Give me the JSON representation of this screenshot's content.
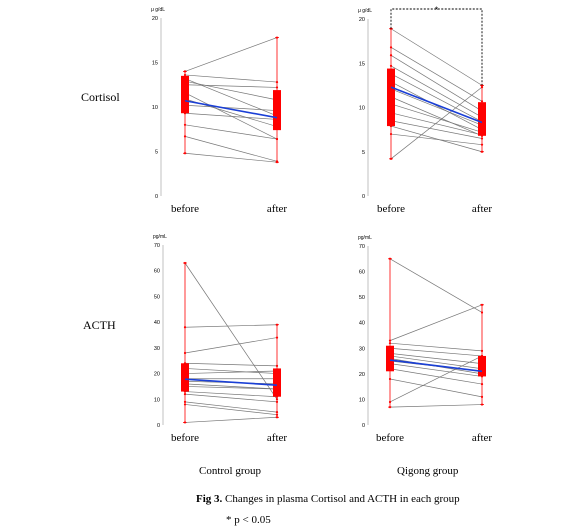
{
  "row_labels": [
    "Cortisol",
    "ACTH"
  ],
  "group_labels": [
    "Control group",
    "Qigong group"
  ],
  "caption": {
    "label": "Fig 3.",
    "text": "Changes in plasma Cortisol and ACTH in each group"
  },
  "note": "* p < 0.05",
  "colors": {
    "range": "#ff0000",
    "box": "#ff0000",
    "subject": "#777777",
    "mean": "#1a3fd6"
  },
  "chart_data": [
    {
      "type": "line",
      "panel": "Cortisol - Control group",
      "categories": [
        "before",
        "after"
      ],
      "ylabel": "μ g/dL",
      "ylim": [
        0,
        20
      ],
      "yticks": [
        0,
        5,
        10,
        15,
        20
      ],
      "series_pairs": [
        [
          14.0,
          17.8
        ],
        [
          13.6,
          12.8
        ],
        [
          13.2,
          9.0
        ],
        [
          12.9,
          10.8
        ],
        [
          12.5,
          12.2
        ],
        [
          11.6,
          6.4
        ],
        [
          10.9,
          7.8
        ],
        [
          10.2,
          9.6
        ],
        [
          9.3,
          8.6
        ],
        [
          8.0,
          6.4
        ],
        [
          6.7,
          3.9
        ],
        [
          4.8,
          3.8
        ]
      ],
      "mean": [
        10.7,
        8.8
      ],
      "box": [
        [
          9.3,
          13.5
        ],
        [
          7.4,
          11.9
        ]
      ],
      "range": [
        [
          4.8,
          14.0
        ],
        [
          3.8,
          17.8
        ]
      ],
      "significance": ""
    },
    {
      "type": "line",
      "panel": "Cortisol - Qigong group",
      "categories": [
        "before",
        "after"
      ],
      "ylabel": "μ g/dL",
      "ylim": [
        0,
        20
      ],
      "yticks": [
        0,
        5,
        10,
        15,
        20
      ],
      "series_pairs": [
        [
          18.9,
          12.5
        ],
        [
          16.8,
          10.7
        ],
        [
          15.9,
          9.6
        ],
        [
          14.7,
          8.9
        ],
        [
          13.8,
          8.4
        ],
        [
          12.9,
          7.5
        ],
        [
          12.1,
          8.0
        ],
        [
          11.2,
          6.8
        ],
        [
          10.4,
          7.2
        ],
        [
          9.4,
          6.9
        ],
        [
          8.5,
          6.5
        ],
        [
          7.9,
          5.0
        ],
        [
          7.0,
          5.8
        ],
        [
          4.2,
          12.3
        ]
      ],
      "mean": [
        12.3,
        8.3
      ],
      "box": [
        [
          7.9,
          14.4
        ],
        [
          6.8,
          10.6
        ]
      ],
      "range": [
        [
          4.2,
          18.9
        ],
        [
          5.0,
          12.5
        ]
      ],
      "significance": "*"
    },
    {
      "type": "line",
      "panel": "ACTH - Control group",
      "categories": [
        "before",
        "after"
      ],
      "ylabel": "pg/mL",
      "ylim": [
        0,
        70
      ],
      "yticks": [
        0,
        10,
        20,
        30,
        40,
        50,
        60,
        70
      ],
      "series_pairs": [
        [
          63,
          10
        ],
        [
          38,
          39
        ],
        [
          28,
          34
        ],
        [
          24,
          23
        ],
        [
          22,
          20
        ],
        [
          20,
          21
        ],
        [
          18,
          18
        ],
        [
          17,
          16
        ],
        [
          16,
          14
        ],
        [
          15,
          14
        ],
        [
          13,
          11
        ],
        [
          12,
          9
        ],
        [
          9,
          5
        ],
        [
          8,
          4
        ],
        [
          1,
          3
        ]
      ],
      "mean": [
        17.8,
        15.5
      ],
      "box": [
        [
          13,
          24
        ],
        [
          11,
          22
        ]
      ],
      "range": [
        [
          1,
          63
        ],
        [
          3,
          39
        ]
      ],
      "significance": ""
    },
    {
      "type": "line",
      "panel": "ACTH - Qigong group",
      "categories": [
        "before",
        "after"
      ],
      "ylabel": "pg/mL",
      "ylim": [
        0,
        70
      ],
      "yticks": [
        0,
        10,
        20,
        30,
        40,
        50,
        60,
        70
      ],
      "series_pairs": [
        [
          65,
          44
        ],
        [
          33,
          47
        ],
        [
          32,
          29
        ],
        [
          30,
          27
        ],
        [
          28,
          24
        ],
        [
          27,
          22
        ],
        [
          26,
          20
        ],
        [
          25,
          21
        ],
        [
          24,
          19
        ],
        [
          22,
          16
        ],
        [
          18,
          11
        ],
        [
          9,
          27
        ],
        [
          7,
          8
        ]
      ],
      "mean": [
        25.4,
        21.0
      ],
      "box": [
        [
          21,
          31
        ],
        [
          19,
          27
        ]
      ],
      "range": [
        [
          7,
          65
        ],
        [
          8,
          47
        ]
      ],
      "significance": ""
    }
  ]
}
